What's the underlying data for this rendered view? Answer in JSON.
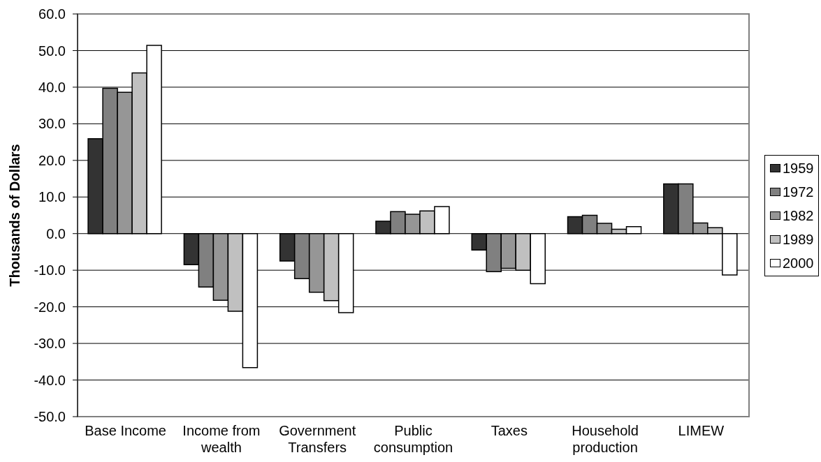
{
  "chart_data": {
    "type": "bar",
    "ylabel": "Thousands of Dollars",
    "categories": [
      "Base Income",
      "Income from wealth",
      "Government Transfers",
      "Public consumption",
      "Taxes",
      "Household production",
      "LIMEW"
    ],
    "series": [
      {
        "name": "1959",
        "color": "#333333",
        "values": [
          25.9,
          -8.5,
          -7.5,
          3.4,
          -4.5,
          4.6,
          13.6
        ]
      },
      {
        "name": "1972",
        "color": "#808080",
        "values": [
          39.7,
          -14.6,
          -12.3,
          6.0,
          -10.4,
          5.0,
          13.6
        ]
      },
      {
        "name": "1982",
        "color": "#969696",
        "values": [
          38.6,
          -18.2,
          -16.0,
          5.3,
          -9.5,
          2.8,
          2.9
        ]
      },
      {
        "name": "1989",
        "color": "#c0c0c0",
        "values": [
          43.9,
          -21.2,
          -18.3,
          6.2,
          -10.0,
          1.2,
          1.6
        ]
      },
      {
        "name": "2000",
        "color": "#ffffff",
        "values": [
          51.4,
          -36.6,
          -21.6,
          7.4,
          -13.7,
          1.9,
          -11.3
        ]
      }
    ],
    "ylim": [
      -50,
      60
    ],
    "yticks": [
      {
        "value": -50,
        "label": "-50.0"
      },
      {
        "value": -40,
        "label": "-40.0"
      },
      {
        "value": -30,
        "label": "-30.0"
      },
      {
        "value": -20,
        "label": "-20.0"
      },
      {
        "value": -10,
        "label": "-10.0"
      },
      {
        "value": 0,
        "label": "0.0"
      },
      {
        "value": 10,
        "label": "10.0"
      },
      {
        "value": 20,
        "label": "20.0"
      },
      {
        "value": 30,
        "label": "30.0"
      },
      {
        "value": 40,
        "label": "40.0"
      },
      {
        "value": 50,
        "label": "50.0"
      },
      {
        "value": 60,
        "label": "60.0"
      }
    ],
    "grid": "y",
    "legend": "right"
  }
}
